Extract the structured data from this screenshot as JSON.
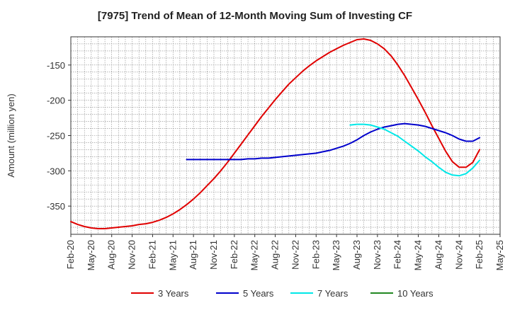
{
  "chart_data": {
    "type": "line",
    "title": "[7975]  Trend of Mean of 12-Month Moving Sum of Investing CF",
    "xlabel": "",
    "ylabel": "Amount (million yen)",
    "ylim": [
      -390,
      -110
    ],
    "yticks": [
      -350,
      -300,
      -250,
      -200,
      -150
    ],
    "xlim": [
      0,
      63
    ],
    "xtick_labels": [
      "Feb-20",
      "May-20",
      "Aug-20",
      "Nov-20",
      "Feb-21",
      "May-21",
      "Aug-21",
      "Nov-21",
      "Feb-22",
      "May-22",
      "Aug-22",
      "Nov-22",
      "Feb-23",
      "May-23",
      "Aug-23",
      "Nov-23",
      "Feb-24",
      "May-24",
      "Aug-24",
      "Nov-24",
      "Feb-25",
      "May-25"
    ],
    "grid": true,
    "legend_position": "bottom",
    "series": [
      {
        "name": "3 Years",
        "color": "#e00000",
        "x": [
          0,
          1,
          2,
          3,
          4,
          5,
          6,
          7,
          8,
          9,
          10,
          11,
          12,
          13,
          14,
          15,
          16,
          17,
          18,
          19,
          20,
          21,
          22,
          23,
          24,
          25,
          26,
          27,
          28,
          29,
          30,
          31,
          32,
          33,
          34,
          35,
          36,
          37,
          38,
          39,
          40,
          41,
          42,
          43,
          44,
          45,
          46,
          47,
          48,
          49,
          50,
          51,
          52,
          53,
          54,
          55,
          56,
          57,
          58,
          59,
          60
        ],
        "values": [
          -372,
          -376,
          -379,
          -381,
          -382,
          -382,
          -381,
          -380,
          -379,
          -378,
          -376,
          -375,
          -373,
          -370,
          -366,
          -361,
          -355,
          -348,
          -340,
          -331,
          -321,
          -311,
          -300,
          -288,
          -275,
          -262,
          -249,
          -236,
          -223,
          -211,
          -199,
          -188,
          -177,
          -168,
          -159,
          -151,
          -144,
          -138,
          -132,
          -127,
          -122,
          -118,
          -114,
          -113,
          -115,
          -120,
          -127,
          -137,
          -150,
          -165,
          -182,
          -199,
          -217,
          -236,
          -254,
          -272,
          -287,
          -295,
          -295,
          -288,
          -270
        ]
      },
      {
        "name": "5 Years",
        "color": "#0000cc",
        "x": [
          17,
          18,
          19,
          20,
          21,
          22,
          23,
          24,
          25,
          26,
          27,
          28,
          29,
          30,
          31,
          32,
          33,
          34,
          35,
          36,
          37,
          38,
          39,
          40,
          41,
          42,
          43,
          44,
          45,
          46,
          47,
          48,
          49,
          50,
          51,
          52,
          53,
          54,
          55,
          56,
          57,
          58,
          59,
          60
        ],
        "values": [
          -284,
          -284,
          -284,
          -284,
          -284,
          -284,
          -284,
          -284,
          -284,
          -283,
          -283,
          -282,
          -282,
          -281,
          -280,
          -279,
          -278,
          -277,
          -276,
          -275,
          -273,
          -271,
          -268,
          -265,
          -261,
          -256,
          -250,
          -245,
          -241,
          -238,
          -236,
          -234,
          -233,
          -234,
          -235,
          -237,
          -240,
          -243,
          -246,
          -250,
          -255,
          -258,
          -258,
          -253
        ]
      },
      {
        "name": "7 Years",
        "color": "#00e8e8",
        "x": [
          41,
          42,
          43,
          44,
          45,
          46,
          47,
          48,
          49,
          50,
          51,
          52,
          53,
          54,
          55,
          56,
          57,
          58,
          59,
          60
        ],
        "values": [
          -235,
          -234,
          -234,
          -235,
          -238,
          -241,
          -246,
          -251,
          -258,
          -265,
          -272,
          -280,
          -287,
          -295,
          -302,
          -306,
          -307,
          -304,
          -296,
          -285
        ]
      },
      {
        "name": "10 Years",
        "color": "#228822",
        "x": [],
        "values": []
      }
    ]
  }
}
